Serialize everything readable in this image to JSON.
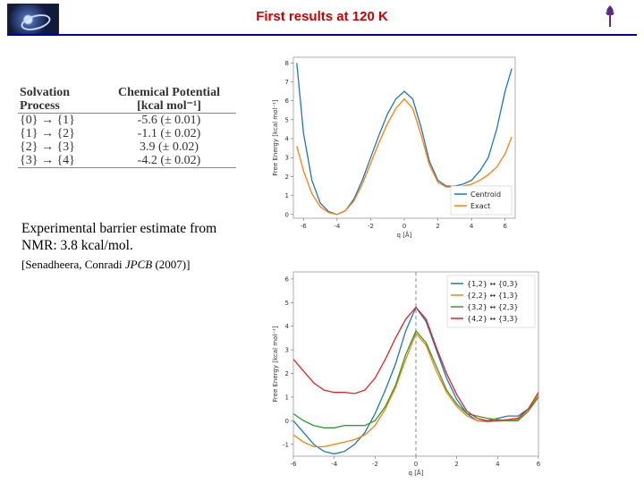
{
  "slide": {
    "title": "First results at 120 K",
    "experimental": "Experimental barrier estimate from NMR:  3.8 kcal/mol.",
    "reference_prefix": "[Senadheera, Conradi ",
    "reference_journal": "JPCB",
    "reference_suffix": " (2007)]"
  },
  "table": {
    "headers": [
      "Solvation Process",
      "Chemical Potential [kcal mol⁻¹]"
    ],
    "rows": [
      [
        "{0} → {1}",
        "-5.6 (± 0.01)"
      ],
      [
        "{1} → {2}",
        "-1.1 (± 0.02)"
      ],
      [
        "{2} → {3}",
        "3.9 (± 0.02)"
      ],
      [
        "{3} → {4}",
        "-4.2 (± 0.02)"
      ]
    ]
  },
  "colors": {
    "title": "#cc0000",
    "rule": "#0000aa",
    "blue": "#1f77b4",
    "orange": "#ff7f0e",
    "green": "#2ca02c",
    "red": "#d62728"
  },
  "icons": {
    "logo": "galaxy-logo-icon",
    "torch": "university-torch-icon"
  },
  "chart_data": [
    {
      "type": "line",
      "xlabel": "q [Å]",
      "ylabel": "Free Energy [kcal mol⁻¹]",
      "xlim": [
        -6.6,
        6.6
      ],
      "ylim": [
        -0.2,
        8.3
      ],
      "xticks": [
        -6,
        -4,
        -2,
        0,
        2,
        4,
        6
      ],
      "yticks": [
        0,
        1,
        2,
        3,
        4,
        5,
        6,
        7,
        8
      ],
      "legend_position": "bottom-right",
      "series": [
        {
          "name": "Centroid",
          "color": "#1f77b4",
          "x": [
            -6.4,
            -6.0,
            -5.5,
            -5.0,
            -4.5,
            -4.0,
            -3.5,
            -3.0,
            -2.5,
            -2.0,
            -1.5,
            -1.0,
            -0.5,
            0,
            0.5,
            1.0,
            1.5,
            2.0,
            2.5,
            3.0,
            3.5,
            4.0,
            4.5,
            5.0,
            5.5,
            6.0,
            6.4
          ],
          "y": [
            8.0,
            4.3,
            1.8,
            0.6,
            0.15,
            0.0,
            0.2,
            0.8,
            1.8,
            3.0,
            4.2,
            5.3,
            6.1,
            6.5,
            6.1,
            4.6,
            2.8,
            1.8,
            1.5,
            1.5,
            1.6,
            1.8,
            2.3,
            3.0,
            4.5,
            6.5,
            7.7
          ]
        },
        {
          "name": "Exact",
          "color": "#ff7f0e",
          "x": [
            -6.4,
            -6.0,
            -5.5,
            -5.0,
            -4.5,
            -4.0,
            -3.5,
            -3.0,
            -2.5,
            -2.0,
            -1.5,
            -1.0,
            -0.5,
            0,
            0.5,
            1.0,
            1.5,
            2.0,
            2.5,
            3.0,
            3.5,
            4.0,
            4.5,
            5.0,
            5.5,
            6.0,
            6.4
          ],
          "y": [
            3.6,
            2.3,
            1.1,
            0.4,
            0.1,
            0.0,
            0.2,
            0.7,
            1.6,
            2.7,
            3.8,
            4.8,
            5.6,
            6.1,
            5.6,
            4.2,
            2.6,
            1.7,
            1.45,
            1.45,
            1.5,
            1.6,
            1.8,
            2.1,
            2.5,
            3.2,
            4.1
          ]
        }
      ]
    },
    {
      "type": "line",
      "xlabel": "q [Å]",
      "ylabel": "Free Energy [kcal mol⁻¹]",
      "xlim": [
        -6,
        6
      ],
      "ylim": [
        -1.5,
        6.3
      ],
      "xticks": [
        -6,
        -4,
        -2,
        0,
        2,
        4,
        6
      ],
      "yticks": [
        -1,
        0,
        1,
        2,
        3,
        4,
        5,
        6
      ],
      "vline_x": 0,
      "legend_position": "top-right",
      "series": [
        {
          "name": "{1,2} ↔ {0,3}",
          "color": "#1f77b4",
          "x": [
            -6,
            -5.5,
            -5,
            -4.5,
            -4,
            -3.5,
            -3,
            -2.5,
            -2,
            -1.5,
            -1,
            -0.5,
            0,
            0.5,
            1,
            1.5,
            2,
            2.5,
            3,
            3.5,
            4,
            4.5,
            5,
            5.5,
            6
          ],
          "y": [
            0.0,
            -0.5,
            -1.0,
            -1.3,
            -1.4,
            -1.3,
            -1.0,
            -0.5,
            0.3,
            1.3,
            2.4,
            3.8,
            4.8,
            4.2,
            3.0,
            1.8,
            0.9,
            0.3,
            0.0,
            0.0,
            0.1,
            0.2,
            0.2,
            0.5,
            1.0
          ]
        },
        {
          "name": "{2,2} ↔ {1,3}",
          "color": "#ff7f0e",
          "x": [
            -6,
            -5.5,
            -5,
            -4.5,
            -4,
            -3.5,
            -3,
            -2.5,
            -2,
            -1.5,
            -1,
            -0.5,
            0,
            0.5,
            1,
            1.5,
            2,
            2.5,
            3,
            3.5,
            4,
            4.5,
            5,
            5.5,
            6
          ],
          "y": [
            -0.6,
            -0.9,
            -1.1,
            -1.1,
            -1.0,
            -0.9,
            -0.8,
            -0.6,
            -0.2,
            0.5,
            1.4,
            2.6,
            3.7,
            3.2,
            2.1,
            1.2,
            0.6,
            0.2,
            0.0,
            -0.05,
            0.0,
            0.0,
            0.05,
            0.5,
            1.1
          ]
        },
        {
          "name": "{3,2} ↔ {2,3}",
          "color": "#2ca02c",
          "x": [
            -6,
            -5.5,
            -5,
            -4.5,
            -4,
            -3.5,
            -3,
            -2.5,
            -2,
            -1.5,
            -1,
            -0.5,
            0,
            0.5,
            1,
            1.5,
            2,
            2.5,
            3,
            3.5,
            4,
            4.5,
            5,
            5.5,
            6
          ],
          "y": [
            0.3,
            0.0,
            -0.2,
            -0.3,
            -0.3,
            -0.2,
            -0.2,
            -0.2,
            0.0,
            0.6,
            1.5,
            2.8,
            3.8,
            3.3,
            2.3,
            1.3,
            0.7,
            0.3,
            0.2,
            0.1,
            0.05,
            0.0,
            0.0,
            0.4,
            1.0
          ]
        },
        {
          "name": "{4,2} ↔ {3,3}",
          "color": "#d62728",
          "x": [
            -6,
            -5.5,
            -5,
            -4.5,
            -4,
            -3.5,
            -3,
            -2.5,
            -2,
            -1.5,
            -1,
            -0.5,
            0,
            0.5,
            1,
            1.5,
            2,
            2.5,
            3,
            3.5,
            4,
            4.5,
            5,
            5.5,
            6
          ],
          "y": [
            2.6,
            2.1,
            1.6,
            1.3,
            1.2,
            1.2,
            1.15,
            1.3,
            1.8,
            2.6,
            3.5,
            4.3,
            4.8,
            4.3,
            3.1,
            2.0,
            1.1,
            0.4,
            0.1,
            0.0,
            0.0,
            0.05,
            0.1,
            0.5,
            1.2
          ]
        }
      ]
    }
  ]
}
